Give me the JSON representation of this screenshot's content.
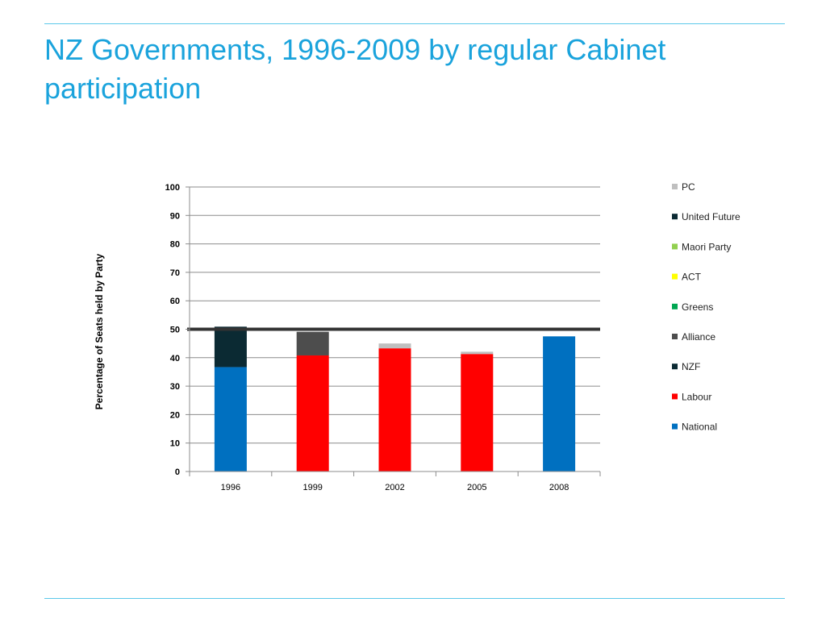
{
  "slide": {
    "title": "NZ Governments, 1996-2009 by regular Cabinet participation"
  },
  "chart_data": {
    "type": "bar",
    "stacked": true,
    "categories": [
      "1996",
      "1999",
      "2002",
      "2005",
      "2008"
    ],
    "ylabel": "Percentage of Seats held by Party",
    "xlabel": "",
    "ylim": [
      0,
      100
    ],
    "ytick_step": 10,
    "grid": true,
    "legend_position": "right",
    "reference_line": {
      "y": 50,
      "color": "#333333"
    },
    "series": [
      {
        "name": "National",
        "color": "#0070c0",
        "values": [
          36.7,
          0,
          0,
          0,
          47.5
        ]
      },
      {
        "name": "Labour",
        "color": "#ff0000",
        "values": [
          0,
          40.8,
          43.3,
          41.3,
          0
        ]
      },
      {
        "name": "NZF",
        "color": "#0b2a33",
        "values": [
          14.2,
          0,
          0,
          0,
          0
        ]
      },
      {
        "name": "Alliance",
        "color": "#4d4d4d",
        "values": [
          0,
          8.3,
          0,
          0,
          0
        ]
      },
      {
        "name": "Greens",
        "color": "#00a651",
        "values": [
          0,
          0,
          0,
          0,
          0
        ]
      },
      {
        "name": "ACT",
        "color": "#ffff00",
        "values": [
          0,
          0,
          0,
          0,
          0
        ]
      },
      {
        "name": "Maori Party",
        "color": "#92d050",
        "values": [
          0,
          0,
          0,
          0,
          0
        ]
      },
      {
        "name": "United Future",
        "color": "#0b2a33",
        "values": [
          0,
          0,
          0,
          0,
          0
        ]
      },
      {
        "name": "PC",
        "color": "#bfbfbf",
        "values": [
          0,
          0,
          1.7,
          0.8,
          0
        ]
      }
    ],
    "legend_order": [
      "PC",
      "United Future",
      "Maori Party",
      "ACT",
      "Greens",
      "Alliance",
      "NZF",
      "Labour",
      "National"
    ]
  }
}
